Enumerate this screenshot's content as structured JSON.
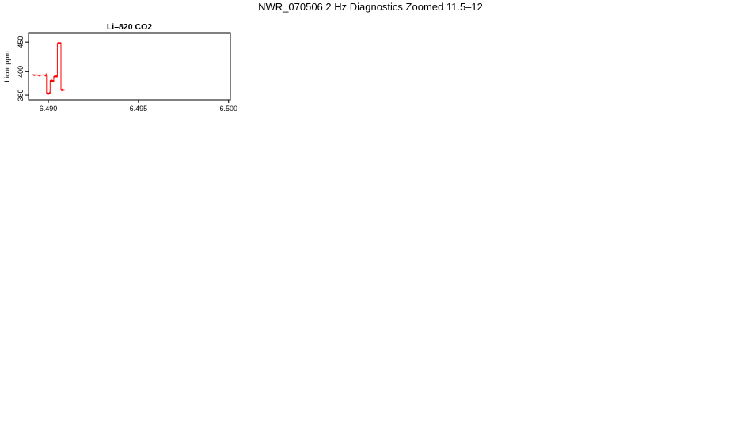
{
  "page_title": "NWR_070506  2 Hz Diagnostics Zoomed 11.5–12",
  "chart_data": [
    {
      "id": "co2",
      "type": "line",
      "title": "Li–820 CO2",
      "ylabel": "Licor ppm",
      "color": "#ff0000",
      "xlim": [
        6.4889,
        6.5001
      ],
      "ylim": [
        352,
        465
      ],
      "xticks": [
        "6.490",
        "6.495",
        "6.500"
      ],
      "xtick_values": [
        6.49,
        6.495,
        6.5
      ],
      "yticks": [
        "360",
        "400",
        "450"
      ],
      "ytick_values": [
        360,
        400,
        450
      ],
      "noise": 1.2,
      "segments": [
        [
          6.4891,
          6.4899,
          394
        ],
        [
          6.4899,
          6.4901,
          363
        ],
        [
          6.4901,
          6.4903,
          384
        ],
        [
          6.4903,
          6.4905,
          392
        ],
        [
          6.4905,
          6.4907,
          448
        ],
        [
          6.4907,
          6.4909,
          369
        ]
      ]
    }
  ]
}
